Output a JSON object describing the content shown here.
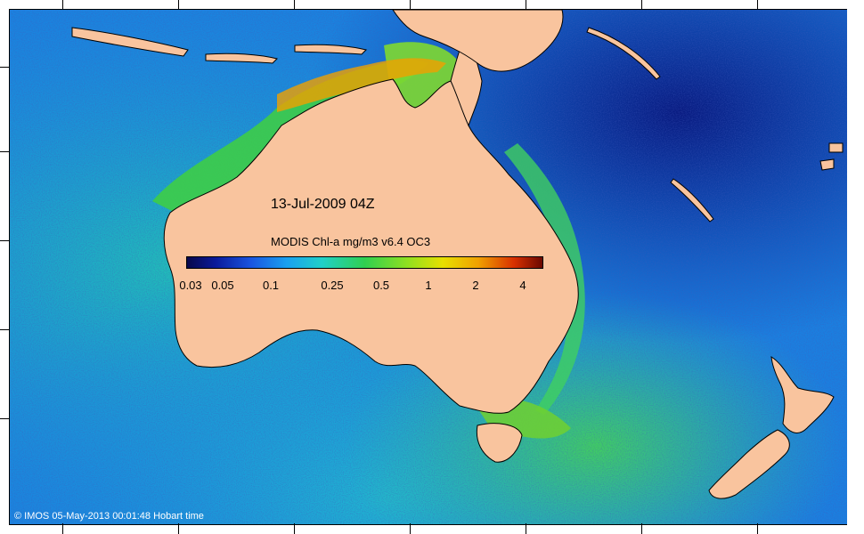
{
  "map": {
    "title": "13-Jul-2009 04Z",
    "colorbar": {
      "title": "MODIS Chl-a mg/m3 v6.4 OC3",
      "tick_labels": [
        "0.03",
        "0.05",
        "0.1",
        "0.25",
        "0.5",
        "1",
        "2",
        "4"
      ]
    },
    "credit": "© IMOS 05-May-2013 00:01:48 Hobart time",
    "colors": {
      "land": "#f9c49e",
      "ocean_low": "#0a1a9a",
      "ocean_mid": "#1aa0f0",
      "ocean_high": "#30d050"
    }
  }
}
